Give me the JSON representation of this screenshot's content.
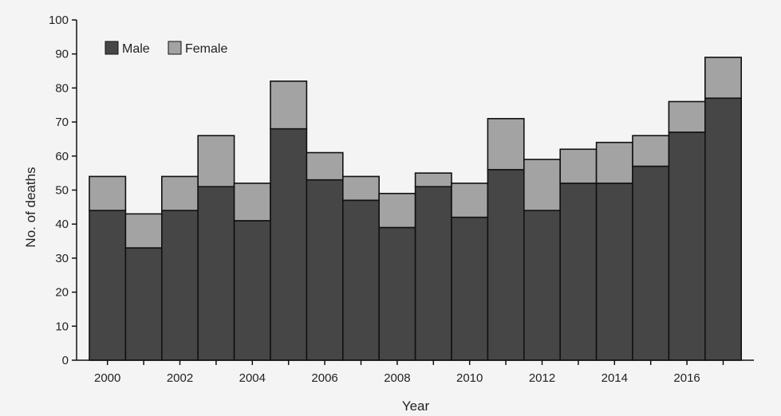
{
  "chart_data": {
    "type": "bar",
    "stacked": true,
    "categories": [
      "2000",
      "2001",
      "2002",
      "2003",
      "2004",
      "2005",
      "2006",
      "2007",
      "2008",
      "2009",
      "2010",
      "2011",
      "2012",
      "2013",
      "2014",
      "2015",
      "2016",
      "2017"
    ],
    "series": [
      {
        "name": "Male",
        "values": [
          44,
          33,
          44,
          51,
          41,
          68,
          53,
          47,
          39,
          51,
          42,
          56,
          44,
          52,
          52,
          57,
          67,
          77
        ],
        "color": "#464646"
      },
      {
        "name": "Female",
        "values": [
          10,
          10,
          10,
          15,
          11,
          14,
          8,
          7,
          10,
          4,
          10,
          15,
          15,
          10,
          12,
          9,
          9,
          12
        ],
        "color": "#a3a3a3"
      }
    ],
    "x_tick_labels": [
      "2000",
      "2002",
      "2004",
      "2006",
      "2008",
      "2010",
      "2012",
      "2014",
      "2016"
    ],
    "y_ticks": [
      0,
      10,
      20,
      30,
      40,
      50,
      60,
      70,
      80,
      90,
      100
    ],
    "xlabel": "Year",
    "ylabel": "No. of deaths",
    "ylim": [
      0,
      100
    ],
    "grid": false,
    "legend_position": "top-left"
  }
}
